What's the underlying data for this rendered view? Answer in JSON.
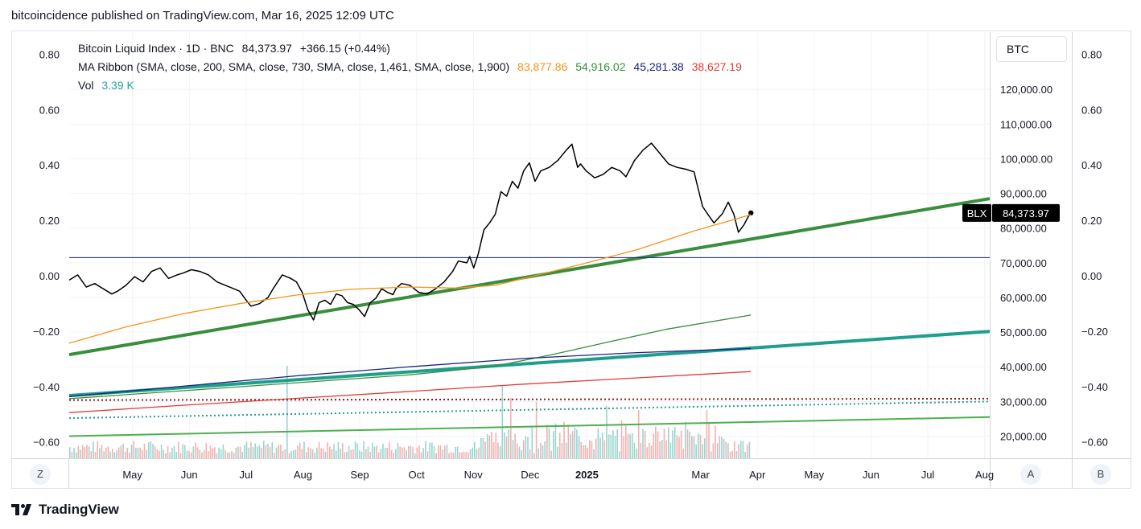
{
  "header": {
    "published": "bitcoincidence published on TradingView.com, Mar 16, 2025 12:09 UTC"
  },
  "legend": {
    "symbol": "Bitcoin Liquid Index · 1D · BNC",
    "price": "84,373.97",
    "change": "+366.15 (+0.44%)",
    "indicator": "MA Ribbon (SMA, close, 200, SMA, close, 730, SMA, close, 1,461, SMA, close, 1,900)",
    "ma_values": [
      {
        "value": "83,877.86",
        "color": "#f7931a"
      },
      {
        "value": "54,916.02",
        "color": "#388e3c"
      },
      {
        "value": "45,281.38",
        "color": "#1a237e"
      },
      {
        "value": "38,627.19",
        "color": "#e53935"
      }
    ],
    "vol_label": "Vol",
    "vol_value": "3.39 K",
    "vol_color": "#26a69a"
  },
  "currency_button": "BTC",
  "price_badge": {
    "ticker": "BLX",
    "value": "84,373.97"
  },
  "corner_buttons": {
    "z": "Z",
    "a": "A",
    "b": "B"
  },
  "footer": {
    "brand": "TradingView"
  },
  "chart_data": {
    "type": "line",
    "title": "Bitcoin Liquid Index · 1D · BNC",
    "price_axis": {
      "ticks": [
        "120,000.00",
        "110,000.00",
        "100,000.00",
        "90,000.00",
        "80,000.00",
        "70,000.00",
        "60,000.00",
        "50,000.00",
        "40,000.00",
        "30,000.00",
        "20,000.00"
      ],
      "values": [
        120000,
        110000,
        100000,
        90000,
        80000,
        70000,
        60000,
        50000,
        40000,
        30000,
        20000
      ]
    },
    "indicator_axis": {
      "ticks": [
        "0.80",
        "0.60",
        "0.40",
        "0.20",
        "0.00",
        "−0.20",
        "−0.40",
        "−0.60"
      ],
      "values": [
        0.8,
        0.6,
        0.4,
        0.2,
        0.0,
        -0.2,
        -0.4,
        -0.6
      ]
    },
    "time_axis": {
      "labels": [
        "May",
        "Jun",
        "Jul",
        "Aug",
        "Sep",
        "Oct",
        "Nov",
        "Dec",
        "2025",
        "Mar",
        "Apr",
        "May",
        "Jun",
        "Jul",
        "Aug"
      ],
      "bold": [
        "2025"
      ],
      "months_index": [
        1,
        2,
        3,
        4,
        5,
        6,
        7,
        8,
        9,
        11,
        12,
        13,
        14,
        15,
        16
      ]
    },
    "series": [
      {
        "name": "BLX",
        "color": "#000000",
        "points": [
          [
            0,
            65000
          ],
          [
            0.15,
            66500
          ],
          [
            0.3,
            63000
          ],
          [
            0.45,
            64000
          ],
          [
            0.6,
            62500
          ],
          [
            0.75,
            61000
          ],
          [
            0.85,
            61800
          ],
          [
            1.0,
            63500
          ],
          [
            1.15,
            66000
          ],
          [
            1.3,
            64500
          ],
          [
            1.45,
            67500
          ],
          [
            1.6,
            68500
          ],
          [
            1.75,
            65500
          ],
          [
            1.9,
            66500
          ],
          [
            2.0,
            67000
          ],
          [
            2.15,
            68000
          ],
          [
            2.3,
            67500
          ],
          [
            2.45,
            66500
          ],
          [
            2.6,
            64500
          ],
          [
            2.75,
            63500
          ],
          [
            2.9,
            62500
          ],
          [
            3.0,
            61800
          ],
          [
            3.1,
            59500
          ],
          [
            3.2,
            57500
          ],
          [
            3.35,
            58200
          ],
          [
            3.5,
            60000
          ],
          [
            3.6,
            62800
          ],
          [
            3.75,
            66500
          ],
          [
            3.9,
            65500
          ],
          [
            4.0,
            64500
          ],
          [
            4.1,
            61500
          ],
          [
            4.2,
            56500
          ],
          [
            4.3,
            53500
          ],
          [
            4.4,
            58500
          ],
          [
            4.5,
            59200
          ],
          [
            4.6,
            58000
          ],
          [
            4.7,
            61000
          ],
          [
            4.8,
            60500
          ],
          [
            4.9,
            58500
          ],
          [
            5.0,
            58000
          ],
          [
            5.1,
            56500
          ],
          [
            5.2,
            54500
          ],
          [
            5.3,
            58500
          ],
          [
            5.4,
            59800
          ],
          [
            5.5,
            62500
          ],
          [
            5.6,
            61500
          ],
          [
            5.7,
            60800
          ],
          [
            5.75,
            62500
          ],
          [
            5.85,
            64000
          ],
          [
            6.0,
            63500
          ],
          [
            6.15,
            61500
          ],
          [
            6.3,
            61000
          ],
          [
            6.45,
            62500
          ],
          [
            6.6,
            64500
          ],
          [
            6.75,
            67500
          ],
          [
            6.85,
            70500
          ],
          [
            7.0,
            70000
          ],
          [
            7.05,
            71800
          ],
          [
            7.12,
            68500
          ],
          [
            7.2,
            72500
          ],
          [
            7.3,
            79500
          ],
          [
            7.4,
            81500
          ],
          [
            7.5,
            84000
          ],
          [
            7.6,
            90500
          ],
          [
            7.7,
            89200
          ],
          [
            7.8,
            93500
          ],
          [
            7.9,
            91500
          ],
          [
            8.0,
            96500
          ],
          [
            8.1,
            98800
          ],
          [
            8.2,
            93500
          ],
          [
            8.3,
            96500
          ],
          [
            8.45,
            97500
          ],
          [
            8.6,
            99500
          ],
          [
            8.75,
            102500
          ],
          [
            8.85,
            104200
          ],
          [
            8.95,
            97500
          ],
          [
            9.0,
            98500
          ],
          [
            9.1,
            96500
          ],
          [
            9.25,
            94500
          ],
          [
            9.4,
            95500
          ],
          [
            9.55,
            97500
          ],
          [
            9.7,
            96500
          ],
          [
            9.8,
            94800
          ],
          [
            9.95,
            99500
          ],
          [
            10.1,
            102500
          ],
          [
            10.25,
            104500
          ],
          [
            10.4,
            101500
          ],
          [
            10.55,
            98500
          ],
          [
            10.7,
            97500
          ],
          [
            10.85,
            97000
          ],
          [
            11.0,
            96200
          ],
          [
            11.05,
            92800
          ],
          [
            11.15,
            86200
          ],
          [
            11.25,
            83800
          ],
          [
            11.35,
            81500
          ],
          [
            11.5,
            84200
          ],
          [
            11.6,
            87500
          ],
          [
            11.7,
            84000
          ],
          [
            11.78,
            78800
          ],
          [
            11.88,
            81000
          ],
          [
            11.95,
            83200
          ],
          [
            12.0,
            84374
          ]
        ],
        "endpoint_dot": true
      },
      {
        "name": "MA 200",
        "color": "#f7931a",
        "points": [
          [
            0,
            46800
          ],
          [
            1,
            51500
          ],
          [
            2,
            55300
          ],
          [
            3,
            58200
          ],
          [
            4,
            60700
          ],
          [
            5,
            62400
          ],
          [
            6,
            63000
          ],
          [
            6.8,
            62700
          ],
          [
            7.5,
            63500
          ],
          [
            8,
            65500
          ],
          [
            9,
            69500
          ],
          [
            10,
            73800
          ],
          [
            11,
            79200
          ],
          [
            12,
            83878
          ]
        ]
      },
      {
        "name": "MA 730",
        "color": "#388e3c",
        "points": [
          [
            0,
            30800
          ],
          [
            2,
            33100
          ],
          [
            4,
            35400
          ],
          [
            6,
            37700
          ],
          [
            7.5,
            40200
          ],
          [
            8.5,
            43500
          ],
          [
            9.5,
            47200
          ],
          [
            10.5,
            50800
          ],
          [
            12,
            54916
          ]
        ]
      },
      {
        "name": "MA 1461",
        "color": "#1a237e",
        "points": [
          [
            0,
            31400
          ],
          [
            2,
            34400
          ],
          [
            4,
            37400
          ],
          [
            6,
            40000
          ],
          [
            8,
            42400
          ],
          [
            10,
            44100
          ],
          [
            12,
            45281
          ]
        ]
      },
      {
        "name": "MA 1900",
        "color": "#e53935",
        "points": [
          [
            0,
            26800
          ],
          [
            2,
            28900
          ],
          [
            4,
            30900
          ],
          [
            6,
            32900
          ],
          [
            8,
            35000
          ],
          [
            10,
            36800
          ],
          [
            12,
            38627
          ]
        ]
      }
    ],
    "trend_lines": [
      {
        "color": "#388e3c",
        "width": 4,
        "from": [
          0,
          43500
        ],
        "to": [
          16.4,
          88500
        ]
      },
      {
        "color": "#1f9e8e",
        "width": 4,
        "from": [
          0,
          31700
        ],
        "to": [
          16.4,
          50200
        ]
      },
      {
        "color": "#4caf50",
        "width": 2,
        "from": [
          0,
          20000
        ],
        "to": [
          16.4,
          25500
        ]
      },
      {
        "color": "#1a237e",
        "width": 1,
        "from": [
          0,
          71500
        ],
        "to": [
          16.4,
          71500
        ]
      }
    ],
    "dotted_lines": [
      {
        "color": "#8b1a1a",
        "from": [
          0,
          30400
        ],
        "to": [
          16.4,
          30800
        ]
      },
      {
        "color": "#1f9e8e",
        "from": [
          0,
          25200
        ],
        "to": [
          16.4,
          30000
        ]
      }
    ],
    "volume": {
      "up_color": "#9ad5cf",
      "down_color": "#f5b0b0",
      "max_k": 28.0,
      "spikes": [
        [
          3.82,
          23
        ],
        [
          7.6,
          18
        ],
        [
          7.75,
          15
        ],
        [
          8.2,
          14
        ],
        [
          9.45,
          13
        ],
        [
          10.0,
          12
        ],
        [
          10.85,
          9
        ],
        [
          11.2,
          12
        ]
      ]
    },
    "ylim_price": [
      16000,
      133000
    ],
    "grid": true
  }
}
